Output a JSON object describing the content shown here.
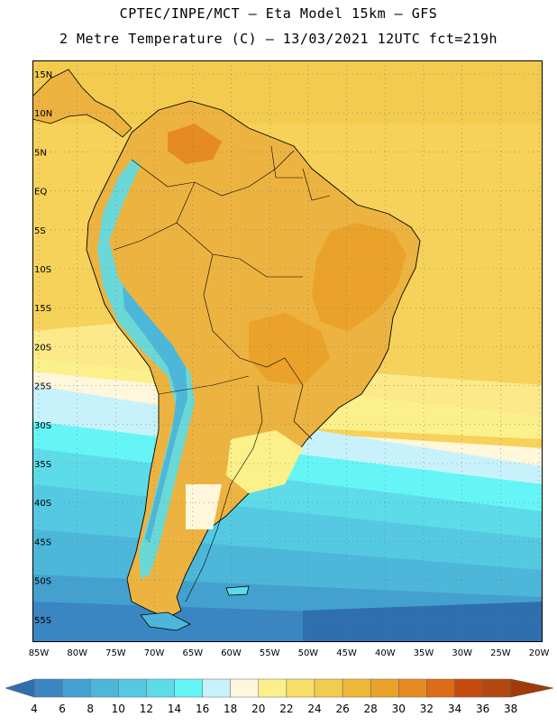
{
  "header": {
    "line1": "CPTEC/INPE/MCT –  Eta Model 15km – GFS",
    "line2": "2 Metre Temperature (C) – 13/03/2021 12UTC fct=219h"
  },
  "map": {
    "lat_labels": [
      "15N",
      "10N",
      "5N",
      "EQ",
      "5S",
      "10S",
      "15S",
      "20S",
      "25S",
      "30S",
      "35S",
      "40S",
      "45S",
      "50S",
      "55S"
    ],
    "lon_labels": [
      "85W",
      "80W",
      "75W",
      "70W",
      "65W",
      "60W",
      "55W",
      "50W",
      "45W",
      "40W",
      "35W",
      "30W",
      "25W",
      "20W"
    ],
    "ocean_color": "#f6d25a",
    "land_color": "#ecb340",
    "coast_color": "#000000"
  },
  "legend": {
    "values": [
      "4",
      "6",
      "8",
      "10",
      "12",
      "14",
      "16",
      "18",
      "20",
      "22",
      "24",
      "26",
      "28",
      "30",
      "32",
      "34",
      "36",
      "38"
    ],
    "colors": [
      "#2e6fb0",
      "#3a86c2",
      "#44a1cf",
      "#4db7da",
      "#55c9e2",
      "#5ddbe9",
      "#66f5f7",
      "#c8f2fb",
      "#fff7dc",
      "#fbf08a",
      "#f8df6a",
      "#f2cc4e",
      "#edb838",
      "#eaa22a",
      "#e58b22",
      "#dc6c17",
      "#c54b0d",
      "#b2480f",
      "#a03a0a"
    ]
  }
}
